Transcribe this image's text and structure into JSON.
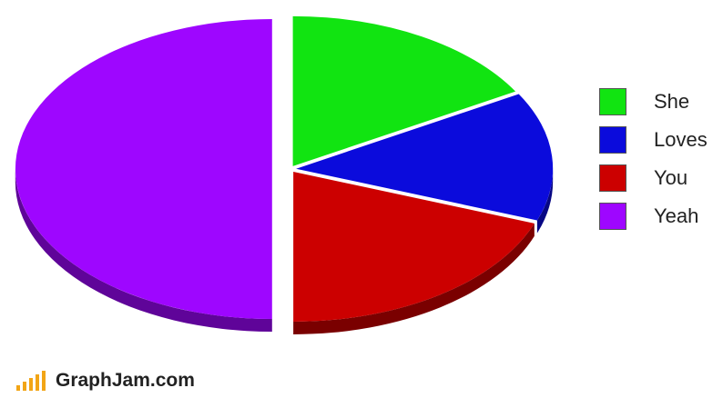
{
  "chart_data": {
    "type": "pie",
    "series": [
      {
        "name": "She",
        "value": 16.7,
        "color": "#11e411"
      },
      {
        "name": "Loves",
        "value": 13.9,
        "color": "#0b0bdc"
      },
      {
        "name": "You",
        "value": 19.4,
        "color": "#cc0000"
      },
      {
        "name": "Yeah",
        "value": 50.0,
        "color": "#9e06ff"
      }
    ],
    "legend_position": "right",
    "style": "3d-exploded"
  },
  "watermark": {
    "text": "GraphJam.com",
    "bar_color": "#f2a516"
  }
}
